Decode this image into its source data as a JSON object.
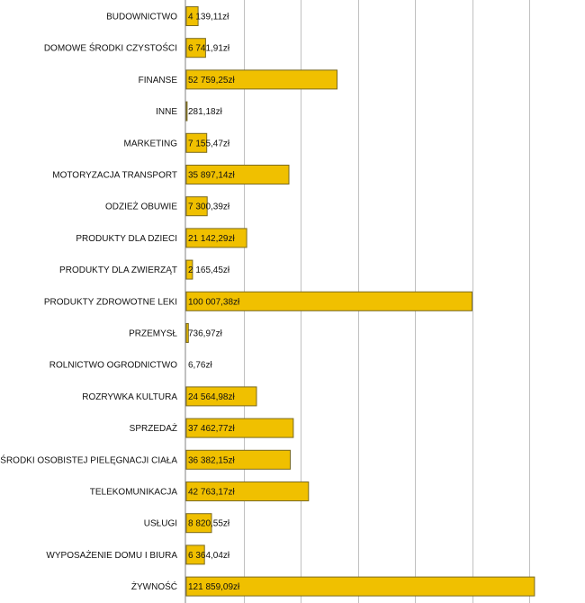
{
  "chart_data": {
    "type": "bar",
    "orientation": "horizontal",
    "title": "",
    "xlabel": "",
    "ylabel": "",
    "xlim": [
      0,
      140000
    ],
    "grid_step": 20000,
    "grid": true,
    "bar_color": "#f0c000",
    "bar_border_color": "#7a6a20",
    "grid_color": "#c0c0c0",
    "categories": [
      "BUDOWNICTWO",
      "DOMOWE ŚRODKI CZYSTOŚCI",
      "FINANSE",
      "INNE",
      "MARKETING",
      "MOTORYZACJA TRANSPORT",
      "ODZIEŻ OBUWIE",
      "PRODUKTY DLA DZIECI",
      "PRODUKTY DLA ZWIERZĄT",
      "PRODUKTY ZDROWOTNE LEKI",
      "PRZEMYSŁ",
      "ROLNICTWO OGRODNICTWO",
      "ROZRYWKA KULTURA",
      "SPRZEDAŻ",
      "ŚRODKI OSOBISTEJ PIELĘGNACJI CIAŁA",
      "TELEKOMUNIKACJA",
      "USŁUGI",
      "WYPOSAŻENIE DOMU I BIURA",
      "ŻYWNOŚĆ"
    ],
    "values": [
      4139.11,
      6741.91,
      52759.25,
      281.18,
      7155.47,
      35897.14,
      7300.39,
      21142.29,
      2165.45,
      100007.38,
      736.97,
      6.76,
      24564.98,
      37462.77,
      36382.15,
      42763.17,
      8820.55,
      6364.04,
      121859.09
    ],
    "value_labels": [
      "4 139,11zł",
      "6 741,91zł",
      "52 759,25zł",
      "281,18zł",
      "7 155,47zł",
      "35 897,14zł",
      "7 300,39zł",
      "21 142,29zł",
      "2 165,45zł",
      "100 007,38zł",
      "736,97zł",
      "6,76zł",
      "24 564,98zł",
      "37 462,77zł",
      "36 382,15zł",
      "42 763,17zł",
      "8 820,55zł",
      "6 364,04zł",
      "121 859,09zł"
    ]
  }
}
